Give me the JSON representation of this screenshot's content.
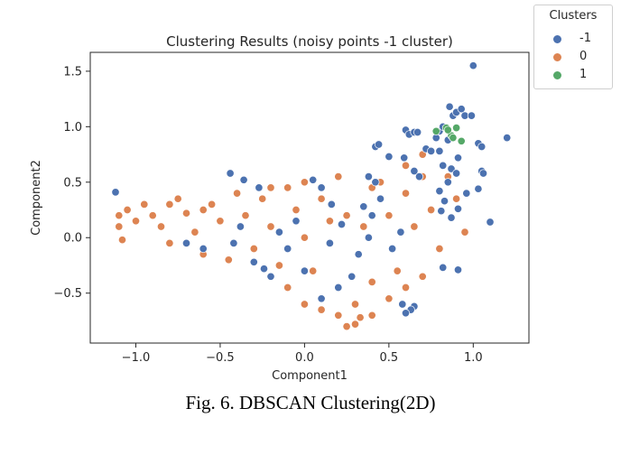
{
  "caption": "Fig. 6. DBSCAN Clustering(2D)",
  "chart_data": {
    "type": "scatter",
    "title": "Clustering Results (noisy points -1 cluster)",
    "xlabel": "Component1",
    "ylabel": "Component2",
    "xlim": [
      -1.27,
      1.33
    ],
    "ylim": [
      -0.95,
      1.67
    ],
    "xticks": [
      -1.0,
      -0.5,
      0.0,
      0.5,
      1.0
    ],
    "xtick_labels": [
      "−1.0",
      "−0.5",
      "0.0",
      "0.5",
      "1.0"
    ],
    "yticks": [
      -0.5,
      0.0,
      0.5,
      1.0,
      1.5
    ],
    "ytick_labels": [
      "−0.5",
      "0.0",
      "0.5",
      "1.0",
      "1.5"
    ],
    "grid": false,
    "legend": {
      "title": "Clusters",
      "placement": "outside-top-right"
    },
    "series": [
      {
        "name": "-1",
        "color": "#4c72b0",
        "points": [
          [
            -1.12,
            0.41
          ],
          [
            -0.44,
            0.58
          ],
          [
            -0.36,
            0.52
          ],
          [
            -0.27,
            0.45
          ],
          [
            -0.42,
            -0.05
          ],
          [
            -0.24,
            -0.28
          ],
          [
            -0.2,
            -0.35
          ],
          [
            -0.3,
            -0.22
          ],
          [
            -0.38,
            0.1
          ],
          [
            -0.15,
            0.05
          ],
          [
            -0.05,
            0.15
          ],
          [
            0.05,
            0.52
          ],
          [
            0.1,
            0.45
          ],
          [
            0.16,
            0.3
          ],
          [
            0.22,
            0.12
          ],
          [
            0.35,
            0.28
          ],
          [
            0.38,
            0.55
          ],
          [
            0.42,
            0.5
          ],
          [
            0.4,
            0.2
          ],
          [
            0.38,
            0.0
          ],
          [
            0.32,
            -0.15
          ],
          [
            0.52,
            -0.1
          ],
          [
            0.57,
            0.05
          ],
          [
            0.45,
            0.35
          ],
          [
            0.59,
            0.72
          ],
          [
            0.65,
            0.6
          ],
          [
            0.68,
            0.55
          ],
          [
            0.42,
            0.82
          ],
          [
            0.44,
            0.84
          ],
          [
            0.5,
            0.73
          ],
          [
            0.6,
            0.97
          ],
          [
            0.62,
            0.93
          ],
          [
            0.65,
            0.95
          ],
          [
            0.67,
            0.95
          ],
          [
            0.72,
            0.8
          ],
          [
            0.75,
            0.78
          ],
          [
            0.78,
            0.9
          ],
          [
            0.8,
            0.96
          ],
          [
            0.82,
            1.0
          ],
          [
            0.86,
            1.18
          ],
          [
            0.88,
            1.1
          ],
          [
            0.9,
            1.13
          ],
          [
            0.93,
            1.16
          ],
          [
            0.95,
            1.1
          ],
          [
            0.99,
            1.1
          ],
          [
            1.0,
            1.55
          ],
          [
            0.85,
            0.88
          ],
          [
            0.82,
            0.65
          ],
          [
            0.87,
            0.62
          ],
          [
            0.8,
            0.78
          ],
          [
            0.91,
            0.72
          ],
          [
            0.9,
            0.58
          ],
          [
            0.85,
            0.5
          ],
          [
            0.8,
            0.42
          ],
          [
            0.83,
            0.33
          ],
          [
            0.96,
            0.4
          ],
          [
            1.03,
            0.44
          ],
          [
            1.05,
            0.6
          ],
          [
            1.06,
            0.58
          ],
          [
            1.03,
            0.85
          ],
          [
            1.05,
            0.82
          ],
          [
            1.2,
            0.9
          ],
          [
            1.1,
            0.14
          ],
          [
            0.91,
            0.26
          ],
          [
            0.87,
            0.18
          ],
          [
            0.81,
            0.24
          ],
          [
            0.82,
            -0.27
          ],
          [
            0.91,
            -0.29
          ],
          [
            0.65,
            -0.62
          ],
          [
            0.63,
            -0.65
          ],
          [
            0.6,
            -0.68
          ],
          [
            0.58,
            -0.6
          ],
          [
            0.1,
            -0.55
          ],
          [
            0.2,
            -0.45
          ],
          [
            0.28,
            -0.35
          ],
          [
            -0.6,
            -0.1
          ],
          [
            -0.7,
            -0.05
          ],
          [
            0.0,
            -0.3
          ],
          [
            -0.1,
            -0.1
          ],
          [
            0.15,
            -0.05
          ]
        ]
      },
      {
        "name": "0",
        "color": "#dd8452",
        "points": [
          [
            -1.1,
            0.2
          ],
          [
            -1.1,
            0.1
          ],
          [
            -1.08,
            -0.02
          ],
          [
            -1.05,
            0.25
          ],
          [
            -1.0,
            0.15
          ],
          [
            -0.95,
            0.3
          ],
          [
            -0.9,
            0.2
          ],
          [
            -0.85,
            0.1
          ],
          [
            -0.8,
            -0.05
          ],
          [
            -0.75,
            0.35
          ],
          [
            -0.7,
            0.22
          ],
          [
            -0.65,
            0.05
          ],
          [
            -0.6,
            -0.15
          ],
          [
            -0.55,
            0.3
          ],
          [
            -0.5,
            0.15
          ],
          [
            -0.45,
            -0.2
          ],
          [
            -0.4,
            0.4
          ],
          [
            -0.35,
            0.2
          ],
          [
            -0.3,
            -0.1
          ],
          [
            -0.25,
            0.35
          ],
          [
            -0.2,
            0.1
          ],
          [
            -0.15,
            -0.25
          ],
          [
            -0.1,
            0.45
          ],
          [
            -0.05,
            0.25
          ],
          [
            0.0,
            0.0
          ],
          [
            0.05,
            -0.3
          ],
          [
            0.1,
            0.35
          ],
          [
            0.15,
            0.15
          ],
          [
            0.2,
            -0.45
          ],
          [
            0.25,
            0.2
          ],
          [
            0.3,
            -0.6
          ],
          [
            0.3,
            -0.78
          ],
          [
            0.35,
            0.1
          ],
          [
            0.4,
            -0.4
          ],
          [
            0.45,
            0.5
          ],
          [
            0.5,
            0.2
          ],
          [
            0.55,
            -0.3
          ],
          [
            0.6,
            0.4
          ],
          [
            0.65,
            0.1
          ],
          [
            0.7,
            0.55
          ],
          [
            0.75,
            0.25
          ],
          [
            0.8,
            -0.1
          ],
          [
            0.85,
            0.55
          ],
          [
            0.9,
            0.35
          ],
          [
            0.95,
            0.05
          ],
          [
            -0.8,
            0.3
          ],
          [
            -0.6,
            0.25
          ],
          [
            -0.2,
            0.45
          ],
          [
            0.0,
            0.5
          ],
          [
            0.2,
            0.55
          ],
          [
            0.4,
            0.45
          ],
          [
            0.6,
            0.65
          ],
          [
            0.7,
            0.75
          ],
          [
            -0.1,
            -0.45
          ],
          [
            0.0,
            -0.6
          ],
          [
            0.1,
            -0.65
          ],
          [
            0.2,
            -0.7
          ],
          [
            0.4,
            -0.7
          ],
          [
            0.5,
            -0.55
          ],
          [
            0.6,
            -0.45
          ],
          [
            0.7,
            -0.35
          ],
          [
            0.25,
            -0.8
          ],
          [
            0.33,
            -0.72
          ]
        ]
      },
      {
        "name": "1",
        "color": "#55a868",
        "points": [
          [
            0.78,
            0.96
          ],
          [
            0.84,
            0.99
          ],
          [
            0.87,
            0.92
          ],
          [
            0.9,
            0.99
          ],
          [
            0.93,
            0.87
          ],
          [
            0.88,
            0.9
          ],
          [
            0.85,
            0.97
          ]
        ]
      }
    ]
  }
}
